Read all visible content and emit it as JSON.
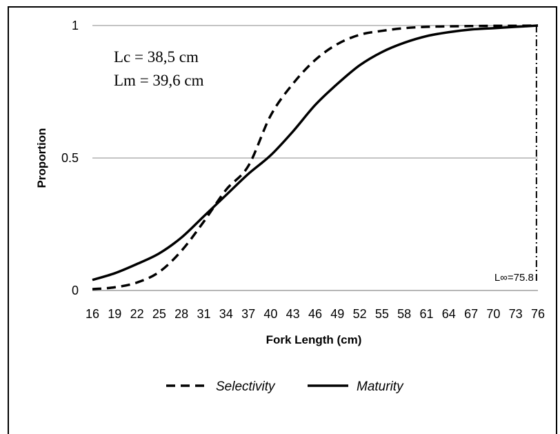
{
  "chart_data": {
    "type": "line",
    "xlabel": "Fork Length (cm)",
    "ylabel": "Proportion",
    "x_ticks": [
      "16",
      "19",
      "22",
      "25",
      "28",
      "31",
      "34",
      "37",
      "40",
      "43",
      "46",
      "49",
      "52",
      "55",
      "58",
      "61",
      "64",
      "67",
      "70",
      "73",
      "76"
    ],
    "y_ticks": [
      "0",
      "0.5",
      "1"
    ],
    "xlim": [
      16,
      76
    ],
    "ylim": [
      0,
      1
    ],
    "grid": "horizontal",
    "annotations": {
      "line1": "Lc = 38,5 cm",
      "line2": "Lm = 39,6 cm",
      "linf_label": "L∞=75.8",
      "linf_value": 75.8
    },
    "legend": {
      "position": "bottom"
    },
    "series": [
      {
        "name": "Selectivity",
        "style": "dashed",
        "color": "#000000",
        "x": [
          16,
          19,
          22,
          25,
          28,
          31,
          34,
          37,
          40,
          43,
          46,
          49,
          52,
          55,
          58,
          61,
          64,
          67,
          70,
          73,
          76
        ],
        "y": [
          0.005,
          0.012,
          0.03,
          0.07,
          0.15,
          0.26,
          0.38,
          0.47,
          0.66,
          0.78,
          0.87,
          0.93,
          0.965,
          0.98,
          0.99,
          0.995,
          0.997,
          0.998,
          0.999,
          0.999,
          1.0
        ]
      },
      {
        "name": "Maturity",
        "style": "solid",
        "color": "#000000",
        "x": [
          16,
          19,
          22,
          25,
          28,
          31,
          34,
          37,
          40,
          43,
          46,
          49,
          52,
          55,
          58,
          61,
          64,
          67,
          70,
          73,
          76
        ],
        "y": [
          0.04,
          0.065,
          0.1,
          0.14,
          0.2,
          0.28,
          0.36,
          0.44,
          0.51,
          0.6,
          0.7,
          0.78,
          0.85,
          0.9,
          0.935,
          0.96,
          0.975,
          0.985,
          0.99,
          0.995,
          1.0
        ]
      }
    ]
  }
}
